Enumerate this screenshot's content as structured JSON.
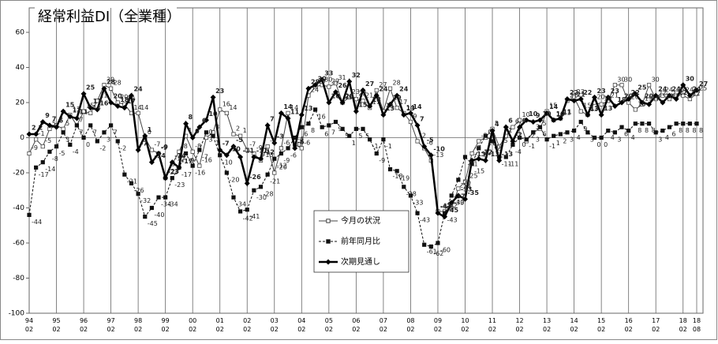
{
  "chart_data": {
    "type": "line",
    "title": "経常利益DI（全業種）",
    "categories": [
      [
        "94",
        "02"
      ],
      null,
      null,
      null,
      [
        "95",
        "02"
      ],
      null,
      null,
      null,
      [
        "96",
        "02"
      ],
      null,
      null,
      null,
      [
        "97",
        "02"
      ],
      null,
      null,
      null,
      [
        "98",
        "02"
      ],
      null,
      null,
      null,
      [
        "99",
        "02"
      ],
      null,
      null,
      null,
      [
        "00",
        "02"
      ],
      null,
      null,
      null,
      [
        "01",
        "02"
      ],
      null,
      null,
      null,
      [
        "02",
        "02"
      ],
      null,
      null,
      null,
      [
        "03",
        "02"
      ],
      null,
      null,
      null,
      [
        "04",
        "02"
      ],
      null,
      null,
      null,
      [
        "05",
        "02"
      ],
      null,
      null,
      null,
      [
        "06",
        "02"
      ],
      null,
      null,
      null,
      [
        "07",
        "02"
      ],
      null,
      null,
      null,
      [
        "08",
        "02"
      ],
      null,
      null,
      null,
      [
        "09",
        "02"
      ],
      null,
      null,
      null,
      [
        "10",
        "02"
      ],
      null,
      null,
      null,
      [
        "11",
        "02"
      ],
      null,
      null,
      null,
      [
        "12",
        "02"
      ],
      null,
      null,
      null,
      [
        "13",
        "02"
      ],
      null,
      null,
      null,
      [
        "14",
        "02"
      ],
      null,
      null,
      null,
      [
        "15",
        "02"
      ],
      null,
      null,
      null,
      [
        "16",
        "02"
      ],
      null,
      null,
      null,
      [
        "17",
        "02"
      ],
      null,
      null,
      null,
      [
        "18",
        "02"
      ],
      null,
      [
        "18",
        "08"
      ]
    ],
    "series": [
      {
        "name": "今月の状況",
        "color": "#444444",
        "marker": "square-open",
        "line_style": "solid",
        "width": 1,
        "values": [
          -9,
          -1,
          -5,
          5,
          7,
          5,
          13,
          7,
          15,
          14,
          21,
          30,
          28,
          20,
          19,
          14,
          14,
          0,
          -7,
          -9,
          -23,
          -15,
          -8,
          1,
          -8,
          -16,
          0,
          3,
          16,
          14,
          2,
          1,
          -7,
          -9,
          -13,
          -5,
          -20,
          -6,
          14,
          -4,
          -6,
          24,
          29,
          30,
          29,
          31,
          20,
          23,
          22,
          21,
          17,
          27,
          15,
          28,
          17,
          14,
          9,
          -2,
          -6,
          -13,
          -42,
          -42,
          -40,
          -29,
          -25,
          -9,
          -2,
          0,
          5,
          -5,
          1,
          6,
          10,
          -2,
          3,
          5,
          15,
          10,
          11,
          21,
          23,
          15,
          13,
          20,
          19,
          21,
          30,
          30,
          20,
          16,
          19,
          30,
          22,
          24,
          22,
          24,
          24,
          22,
          25
        ]
      },
      {
        "name": "前年同月比",
        "color": "#111111",
        "marker": "square-filled",
        "line_style": "dashed",
        "width": 1,
        "values": [
          -44,
          -17,
          -14,
          -8,
          -5,
          3,
          -4,
          7,
          0,
          7,
          -2,
          3,
          7,
          -2,
          -21,
          -26,
          -32,
          -45,
          -40,
          -34,
          -34,
          -23,
          -17,
          -9,
          -16,
          -7,
          3,
          1,
          -10,
          -20,
          -34,
          -42,
          -41,
          -30,
          -28,
          -21,
          -12,
          -9,
          -6,
          0,
          6,
          8,
          16,
          6,
          7,
          9,
          5,
          1,
          5,
          5,
          -1,
          -9,
          -1,
          -18,
          -19,
          -28,
          -33,
          -43,
          -61,
          -62,
          -60,
          -43,
          -33,
          -24,
          -11,
          -15,
          -6,
          1,
          -2,
          -11,
          -11,
          -4,
          0,
          -1,
          3,
          6,
          -1,
          1,
          2,
          3,
          4,
          9,
          3,
          0,
          0,
          4,
          3,
          6,
          4,
          8,
          8,
          8,
          3,
          4,
          6,
          8,
          8,
          8,
          8
        ]
      },
      {
        "name": "次期見通し",
        "color": "#000000",
        "marker": "diamond",
        "line_style": "solid",
        "width": 2.5,
        "values": [
          2,
          2,
          9,
          7,
          6,
          15,
          12,
          11,
          25,
          17,
          16,
          28,
          20,
          18,
          17,
          24,
          -7,
          1,
          -14,
          -9,
          -23,
          -14,
          -17,
          8,
          0,
          6,
          10,
          23,
          -7,
          -10,
          -5,
          -11,
          -26,
          -11,
          -12,
          7,
          -3,
          14,
          11,
          -6,
          13,
          28,
          30,
          33,
          20,
          26,
          20,
          32,
          15,
          27,
          18,
          24,
          13,
          19,
          24,
          13,
          14,
          7,
          -5,
          -10,
          -43,
          -45,
          -37,
          -33,
          -35,
          -13,
          -12,
          -13,
          4,
          -13,
          6,
          -2,
          6,
          10,
          9,
          10,
          14,
          10,
          11,
          22,
          21,
          22,
          13,
          23,
          13,
          23,
          18,
          20,
          22,
          25,
          20,
          19,
          24,
          20,
          24,
          22,
          30,
          24,
          27
        ]
      }
    ],
    "ylim": [
      -100,
      60
    ],
    "yticks": [
      -100,
      -80,
      -60,
      -40,
      -20,
      0,
      20,
      40,
      60
    ],
    "grid": false,
    "legend": "bottom-center"
  }
}
